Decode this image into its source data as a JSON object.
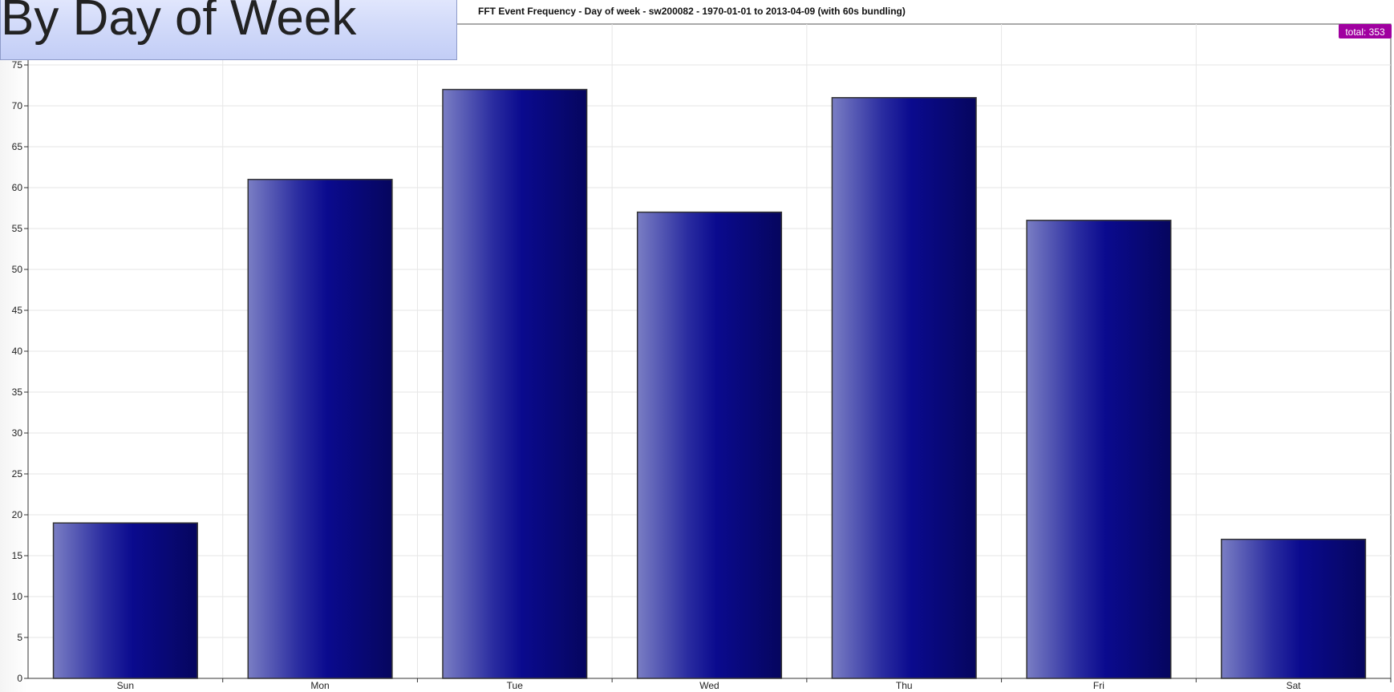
{
  "slide": {
    "title": "By Day of Week"
  },
  "chart_data": {
    "type": "bar",
    "title": "FFT Event Frequency - Day of week - sw200082 - 1970-01-01 to 2013-04-09 (with 60s bundling)",
    "categories": [
      "Sun",
      "Mon",
      "Tue",
      "Wed",
      "Thu",
      "Fri",
      "Sat"
    ],
    "values": [
      19,
      61,
      72,
      57,
      71,
      56,
      17
    ],
    "ylim": [
      0,
      75
    ],
    "yticks": [
      0,
      5,
      10,
      15,
      20,
      25,
      30,
      35,
      40,
      45,
      50,
      55,
      60,
      65,
      70,
      75
    ],
    "xlabel": "",
    "ylabel": "",
    "grid": true,
    "annotation": "total: 353",
    "colors": {
      "bar_light": "#7a7ec4",
      "bar_mid": "#0a0a8e",
      "bar_dark": "#06065e",
      "bar_edge": "#333333",
      "badge": "#a000a0",
      "grid": "#e6e6e6"
    }
  }
}
